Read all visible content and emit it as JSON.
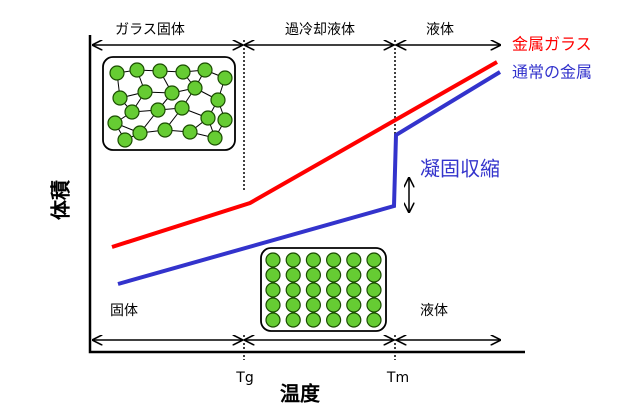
{
  "phases_top": [
    "ガラス固体",
    "過冷却液体",
    "液体"
  ],
  "phases_bottom": [
    "固体",
    "液体"
  ],
  "x_ticks": [
    "Tg",
    "Tm"
  ],
  "x_axis_label": "温度",
  "y_axis_label": "体積",
  "legend": [
    "金属ガラス",
    "通常の金属"
  ],
  "annotation": "凝固収縮"
}
